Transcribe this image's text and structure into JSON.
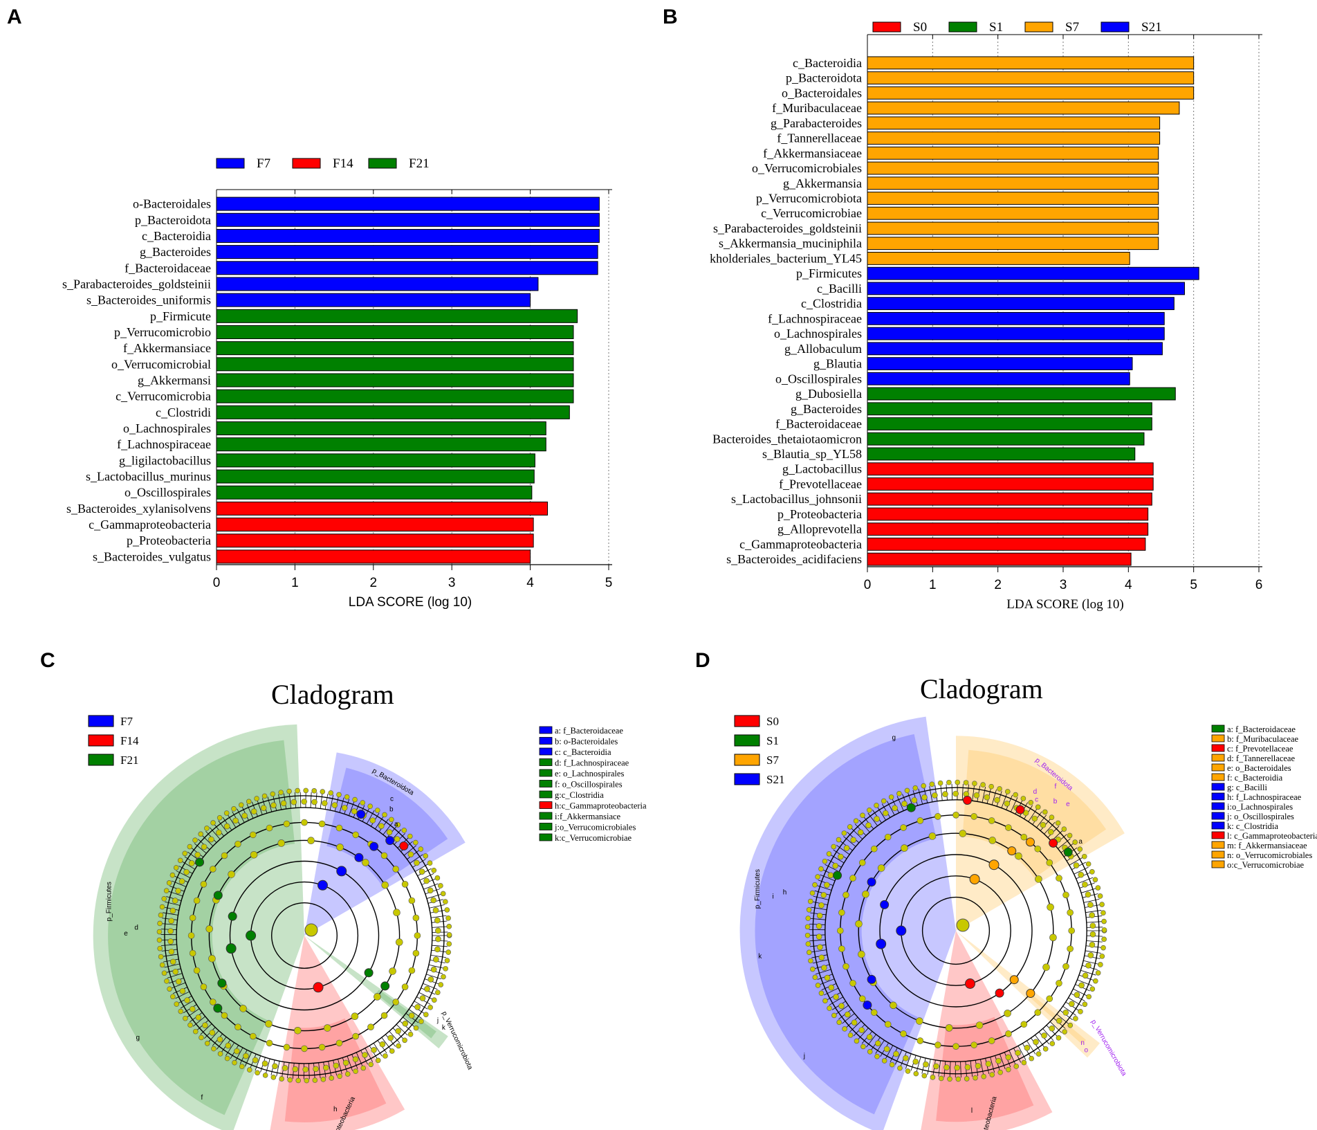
{
  "panels": {
    "a": {
      "letter": "A"
    },
    "b": {
      "letter": "B"
    },
    "c": {
      "letter": "C",
      "title": "Cladogram"
    },
    "d": {
      "letter": "D",
      "title": "Cladogram"
    }
  },
  "colors": {
    "blue": "#0000ff",
    "red": "#ff0000",
    "green": "#008000",
    "orange": "#ffa500",
    "olive": "#c8c800"
  },
  "chart_data": [
    {
      "id": "A",
      "type": "bar",
      "orientation": "horizontal",
      "xlabel": "LDA SCORE (log 10)",
      "xlim": [
        0,
        5
      ],
      "xticks": [
        0,
        1,
        2,
        3,
        4,
        5
      ],
      "legend": [
        {
          "name": "F7",
          "color": "#0000ff"
        },
        {
          "name": "F14",
          "color": "#ff0000"
        },
        {
          "name": "F21",
          "color": "#008000"
        }
      ],
      "bars": [
        {
          "label": "o-Bacteroidales",
          "value": 4.88,
          "group": "F7"
        },
        {
          "label": "p_Bacteroidota",
          "value": 4.88,
          "group": "F7"
        },
        {
          "label": "c_Bacteroidia",
          "value": 4.88,
          "group": "F7"
        },
        {
          "label": "g_Bacteroides",
          "value": 4.86,
          "group": "F7"
        },
        {
          "label": "f_Bacteroidaceae",
          "value": 4.86,
          "group": "F7"
        },
        {
          "label": "s_Parabacteroides_goldsteinii",
          "value": 4.1,
          "group": "F7"
        },
        {
          "label": "s_Bacteroides_uniformis",
          "value": 4.0,
          "group": "F7"
        },
        {
          "label": "p_Firmicute",
          "value": 4.6,
          "group": "F21"
        },
        {
          "label": "p_Verrucomicrobio",
          "value": 4.55,
          "group": "F21"
        },
        {
          "label": "f_Akkermansiace",
          "value": 4.55,
          "group": "F21"
        },
        {
          "label": "o_Verrucomicrobial",
          "value": 4.55,
          "group": "F21"
        },
        {
          "label": "g_Akkermansi",
          "value": 4.55,
          "group": "F21"
        },
        {
          "label": "c_Verrucomicrobia",
          "value": 4.55,
          "group": "F21"
        },
        {
          "label": "c_Clostridi",
          "value": 4.5,
          "group": "F21"
        },
        {
          "label": "o_Lachnospirales",
          "value": 4.2,
          "group": "F21"
        },
        {
          "label": "f_Lachnospiraceae",
          "value": 4.2,
          "group": "F21"
        },
        {
          "label": "g_ligilactobacillus",
          "value": 4.06,
          "group": "F21"
        },
        {
          "label": "s_Lactobacillus_murinus",
          "value": 4.05,
          "group": "F21"
        },
        {
          "label": "o_Oscillospirales",
          "value": 4.02,
          "group": "F21"
        },
        {
          "label": "s_Bacteroides_xylanisolvens",
          "value": 4.22,
          "group": "F14"
        },
        {
          "label": "c_Gammaproteobacteria",
          "value": 4.04,
          "group": "F14"
        },
        {
          "label": "p_Proteobacteria",
          "value": 4.04,
          "group": "F14"
        },
        {
          "label": "s_Bacteroides_vulgatus",
          "value": 4.0,
          "group": "F14"
        }
      ]
    },
    {
      "id": "B",
      "type": "bar",
      "orientation": "horizontal",
      "xlabel": "LDA SCORE (log 10)",
      "xlim": [
        0,
        6
      ],
      "xticks": [
        0,
        1,
        2,
        3,
        4,
        5,
        6
      ],
      "legend": [
        {
          "name": "S0",
          "color": "#ff0000"
        },
        {
          "name": "S1",
          "color": "#008000"
        },
        {
          "name": "S7",
          "color": "#ffa500"
        },
        {
          "name": "S21",
          "color": "#0000ff"
        }
      ],
      "bars": [
        {
          "label": "c_Bacteroidia",
          "value": 5.0,
          "group": "S7"
        },
        {
          "label": "p_Bacteroidota",
          "value": 5.0,
          "group": "S7"
        },
        {
          "label": "o_Bacteroidales",
          "value": 5.0,
          "group": "S7"
        },
        {
          "label": "f_Muribaculaceae",
          "value": 4.78,
          "group": "S7"
        },
        {
          "label": "g_Parabacteroides",
          "value": 4.48,
          "group": "S7"
        },
        {
          "label": "f_Tannerellaceae",
          "value": 4.48,
          "group": "S7"
        },
        {
          "label": "f_Akkermansiaceae",
          "value": 4.46,
          "group": "S7"
        },
        {
          "label": "o_Verrucomicrobiales",
          "value": 4.46,
          "group": "S7"
        },
        {
          "label": "g_Akkermansia",
          "value": 4.46,
          "group": "S7"
        },
        {
          "label": "p_Verrucomicrobiota",
          "value": 4.46,
          "group": "S7"
        },
        {
          "label": "c_Verrucomicrobiae",
          "value": 4.46,
          "group": "S7"
        },
        {
          "label": "s_Parabacteroides_goldsteinii",
          "value": 4.46,
          "group": "S7"
        },
        {
          "label": "s_Akkermansia_muciniphila",
          "value": 4.46,
          "group": "S7"
        },
        {
          "label": "kholderiales_bacterium_YL45",
          "value": 4.02,
          "group": "S7"
        },
        {
          "label": "p_Firmicutes",
          "value": 5.08,
          "group": "S21"
        },
        {
          "label": "c_Bacilli",
          "value": 4.86,
          "group": "S21"
        },
        {
          "label": "c_Clostridia",
          "value": 4.7,
          "group": "S21"
        },
        {
          "label": "f_Lachnospiraceae",
          "value": 4.55,
          "group": "S21"
        },
        {
          "label": "o_Lachnospirales",
          "value": 4.55,
          "group": "S21"
        },
        {
          "label": "g_Allobaculum",
          "value": 4.52,
          "group": "S21"
        },
        {
          "label": "g_Blautia",
          "value": 4.06,
          "group": "S21"
        },
        {
          "label": "o_Oscillospirales",
          "value": 4.02,
          "group": "S21"
        },
        {
          "label": "g_Dubosiella",
          "value": 4.72,
          "group": "S1"
        },
        {
          "label": "g_Bacteroides",
          "value": 4.36,
          "group": "S1"
        },
        {
          "label": "f_Bacteroidaceae",
          "value": 4.36,
          "group": "S1"
        },
        {
          "label": "Bacteroides_thetaiotaomicron",
          "value": 4.24,
          "group": "S1"
        },
        {
          "label": "s_Blautia_sp_YL58",
          "value": 4.1,
          "group": "S1"
        },
        {
          "label": "g_Lactobacillus",
          "value": 4.38,
          "group": "S0"
        },
        {
          "label": "f_Prevotellaceae",
          "value": 4.38,
          "group": "S0"
        },
        {
          "label": "s_Lactobacillus_johnsonii",
          "value": 4.36,
          "group": "S0"
        },
        {
          "label": "p_Proteobacteria",
          "value": 4.3,
          "group": "S0"
        },
        {
          "label": "g_Alloprevotella",
          "value": 4.3,
          "group": "S0"
        },
        {
          "label": "c_Gammaproteobacteria",
          "value": 4.26,
          "group": "S0"
        },
        {
          "label": "s_Bacteroides_acidifaciens",
          "value": 4.04,
          "group": "S0"
        }
      ]
    }
  ],
  "cladograms": {
    "c": {
      "legend": [
        {
          "name": "F7",
          "color": "#0000ff"
        },
        {
          "name": "F14",
          "color": "#ff0000"
        },
        {
          "name": "F21",
          "color": "#008000"
        }
      ],
      "keys": [
        {
          "text": "a: f_Bacteroidaceae",
          "color": "#0000ff"
        },
        {
          "text": "b: o-Bacteroidales",
          "color": "#0000ff"
        },
        {
          "text": "c: c_Bacteroidia",
          "color": "#0000ff"
        },
        {
          "text": "d: f_Lachnospiraceae",
          "color": "#008000"
        },
        {
          "text": "e: o_Lachnospirales",
          "color": "#008000"
        },
        {
          "text": "f: o_Oscillospirales",
          "color": "#008000"
        },
        {
          "text": "g:c_Clostridia",
          "color": "#008000"
        },
        {
          "text": "h:c_Gammaproteobacteria",
          "color": "#ff0000"
        },
        {
          "text": "i:f_Akkermansiace",
          "color": "#008000"
        },
        {
          "text": "j:o_Verrucomicrobiales",
          "color": "#008000"
        },
        {
          "text": "k:c_Verrucomicrobiae",
          "color": "#008000"
        }
      ],
      "sector_labels": {
        "bacteroidota": "p_Bacteroidota",
        "firmicutes": "p_Firmicutes",
        "proteobacteria": "p_Proteobacteria",
        "verrucomicrobiota": "p_Verrucomicrobiota"
      },
      "letters": [
        "c",
        "b",
        "a",
        "e",
        "d",
        "g",
        "f",
        "h",
        "j",
        "k"
      ]
    },
    "d": {
      "legend": [
        {
          "name": "S0",
          "color": "#ff0000"
        },
        {
          "name": "S1",
          "color": "#008000"
        },
        {
          "name": "S7",
          "color": "#ffa500"
        },
        {
          "name": "S21",
          "color": "#0000ff"
        }
      ],
      "keys": [
        {
          "text": "a: f_Bacteroidaceae",
          "color": "#008000"
        },
        {
          "text": "b: f_Muribaculaceae",
          "color": "#ffa500"
        },
        {
          "text": "c: f_Prevotellaceae",
          "color": "#ff0000"
        },
        {
          "text": "d: f_Tannerellaceae",
          "color": "#ffa500"
        },
        {
          "text": "e: o_Bacteroidales",
          "color": "#ffa500"
        },
        {
          "text": "f: c_Bacteroidia",
          "color": "#ffa500"
        },
        {
          "text": "g: c_Bacilli",
          "color": "#0000ff"
        },
        {
          "text": "h: f_Lachnospiraceae",
          "color": "#0000ff"
        },
        {
          "text": "i:o_Lachnospirales",
          "color": "#0000ff"
        },
        {
          "text": "j: o_Oscillospirales",
          "color": "#0000ff"
        },
        {
          "text": "k: c_Clostridia",
          "color": "#0000ff"
        },
        {
          "text": "l: c_Gammaproteobacteria",
          "color": "#ff0000"
        },
        {
          "text": "m: f_Akkermansiaceae",
          "color": "#ffa500"
        },
        {
          "text": "n: o_Verrucomicrobiales",
          "color": "#ffa500"
        },
        {
          "text": "o:c_Verrucomicrobiae",
          "color": "#ffa500"
        }
      ],
      "sector_labels": {
        "bacteroidota": "p_Bacteroidota",
        "firmicutes": "p_Firmicutes",
        "proteobacteria": "p_Proteobacteria",
        "verrucomicrobiota": "p_Verrucomicrobiota"
      },
      "letters": [
        "g",
        "i",
        "h",
        "k",
        "j",
        "d",
        "f",
        "c",
        "b",
        "e",
        "a",
        "l",
        "n",
        "o"
      ]
    }
  }
}
